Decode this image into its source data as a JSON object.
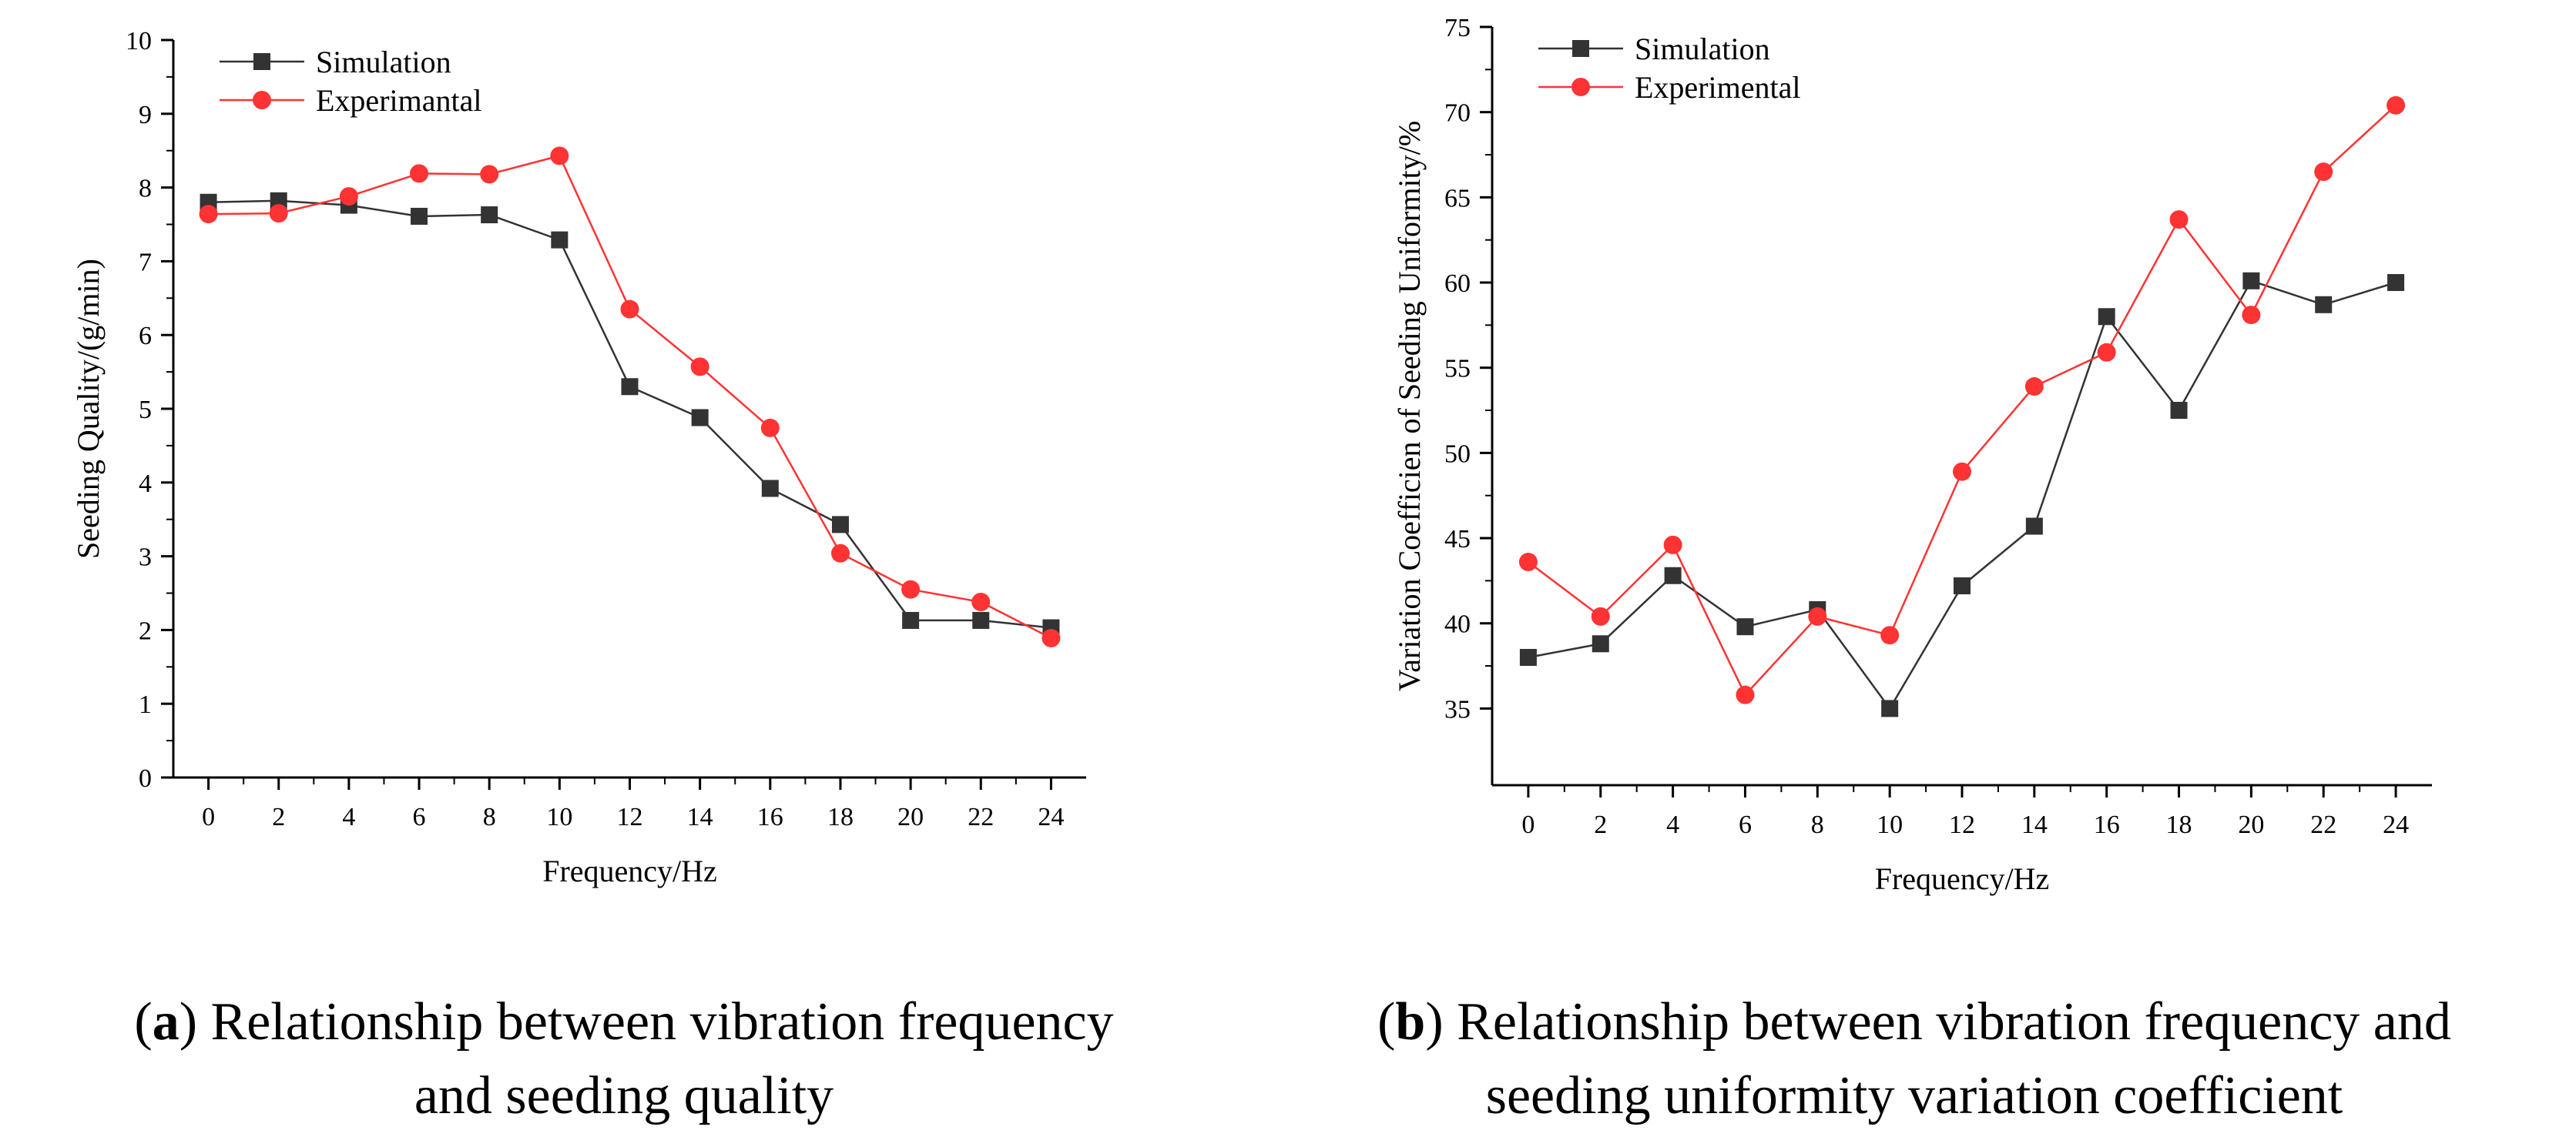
{
  "chart_data": [
    {
      "type": "line",
      "panel": "a",
      "xlabel": "Frequency/Hz",
      "ylabel": "Seeding Quality/(g/min)",
      "x": [
        0,
        2,
        4,
        6,
        8,
        10,
        12,
        14,
        16,
        18,
        20,
        22,
        24
      ],
      "xlim": [
        -1,
        25
      ],
      "ylim": [
        0,
        10
      ],
      "xticks": [
        "0",
        "2",
        "4",
        "6",
        "8",
        "10",
        "12",
        "14",
        "16",
        "18",
        "20",
        "22",
        "24"
      ],
      "yticks": [
        "0",
        "1",
        "2",
        "3",
        "4",
        "5",
        "6",
        "7",
        "8",
        "9",
        "10"
      ],
      "grid": false,
      "legend_position": "top-left",
      "series": [
        {
          "name": "Simulation",
          "color": "#333333",
          "marker": "square",
          "values": [
            7.8,
            7.82,
            7.76,
            7.61,
            7.63,
            7.29,
            5.3,
            4.88,
            3.92,
            3.43,
            2.13,
            2.13,
            2.03
          ]
        },
        {
          "name": "Experimantal",
          "color": "#ff3333",
          "marker": "circle",
          "values": [
            7.64,
            7.65,
            7.88,
            8.19,
            8.18,
            8.43,
            6.35,
            5.57,
            4.74,
            3.04,
            2.55,
            2.38,
            1.89
          ]
        }
      ]
    },
    {
      "type": "line",
      "panel": "b",
      "xlabel": "Frequency/Hz",
      "ylabel": "Variation Coefficien of Seeding Uniformity/%",
      "x": [
        0,
        2,
        4,
        6,
        8,
        10,
        12,
        14,
        16,
        18,
        20,
        22,
        24
      ],
      "xlim": [
        -1,
        25
      ],
      "ylim": [
        30.5,
        75
      ],
      "xticks": [
        "0",
        "2",
        "4",
        "6",
        "8",
        "10",
        "12",
        "14",
        "16",
        "18",
        "20",
        "22",
        "24"
      ],
      "yticks": [
        "35",
        "40",
        "45",
        "50",
        "55",
        "60",
        "65",
        "70",
        "75"
      ],
      "grid": false,
      "legend_position": "top-left",
      "series": [
        {
          "name": "Simulation",
          "color": "#333333",
          "marker": "square",
          "values": [
            38.0,
            38.8,
            42.8,
            39.8,
            40.8,
            35.0,
            42.2,
            45.7,
            58.0,
            52.5,
            60.1,
            58.7,
            60.0
          ]
        },
        {
          "name": "Experimental",
          "color": "#ff3333",
          "marker": "circle",
          "values": [
            43.6,
            40.4,
            44.6,
            35.8,
            40.4,
            39.3,
            48.9,
            53.9,
            55.9,
            63.7,
            58.1,
            66.5,
            70.4
          ]
        }
      ]
    }
  ],
  "captions": [
    {
      "label": "a",
      "text_line1": " Relationship between vibration frequency",
      "text_line2": "and seeding quality"
    },
    {
      "label": "b",
      "text_line1": " Relationship between vibration frequency and",
      "text_line2": "seeding uniformity variation coefficient"
    }
  ]
}
